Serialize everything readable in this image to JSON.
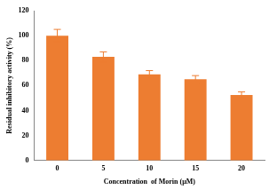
{
  "chart_data": {
    "type": "bar",
    "x_label": "Concentration  of Morin (μM)",
    "y_label": "Residual inhibitory activity (%)",
    "categories": [
      "0",
      "5",
      "10",
      "15",
      "20"
    ],
    "values": [
      100,
      83,
      69,
      65,
      52.5
    ],
    "errors": [
      5,
      4,
      3,
      3,
      2.5
    ],
    "color": "#ed7d31",
    "ylim": [
      0,
      120
    ],
    "yticks": [
      0,
      20,
      40,
      60,
      80,
      100,
      120
    ],
    "grid": false
  }
}
